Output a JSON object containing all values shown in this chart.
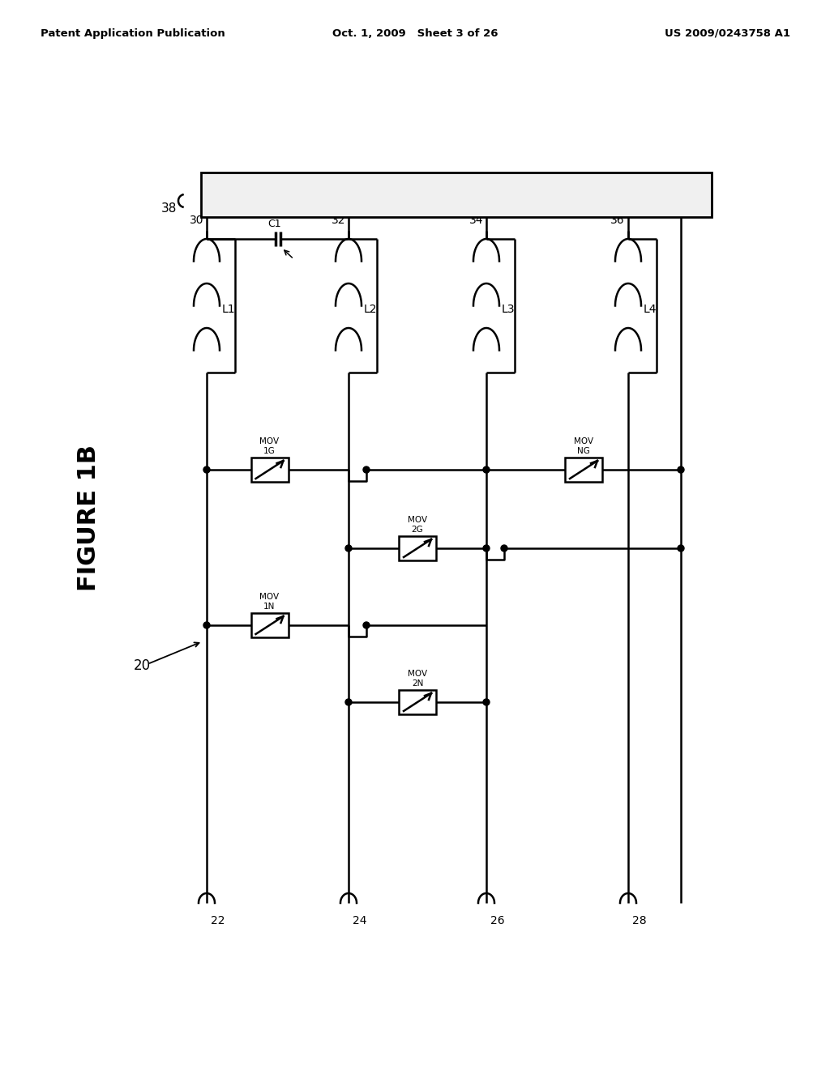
{
  "title": "FIGURE 1B",
  "header_left": "Patent Application Publication",
  "header_center": "Oct. 1, 2009   Sheet 3 of 26",
  "header_right": "US 2009/0243758 A1",
  "bg": "#ffffff",
  "lc": "#000000",
  "box38_fill": "#f0f0f0",
  "labels": {
    "38": "38",
    "20": "20",
    "22": "22",
    "24": "24",
    "26": "26",
    "28": "28",
    "30": "30",
    "32": "32",
    "34": "34",
    "36": "36",
    "L1": "L1",
    "L2": "L2",
    "L3": "L3",
    "L4": "L4",
    "C1": "C1",
    "MOV1G": "MOV\n1G",
    "MOV2G": "MOV\n2G",
    "MOV1N": "MOV\n1N",
    "MOV2N": "MOV\n2N",
    "MOVNG": "MOV\nNG"
  }
}
